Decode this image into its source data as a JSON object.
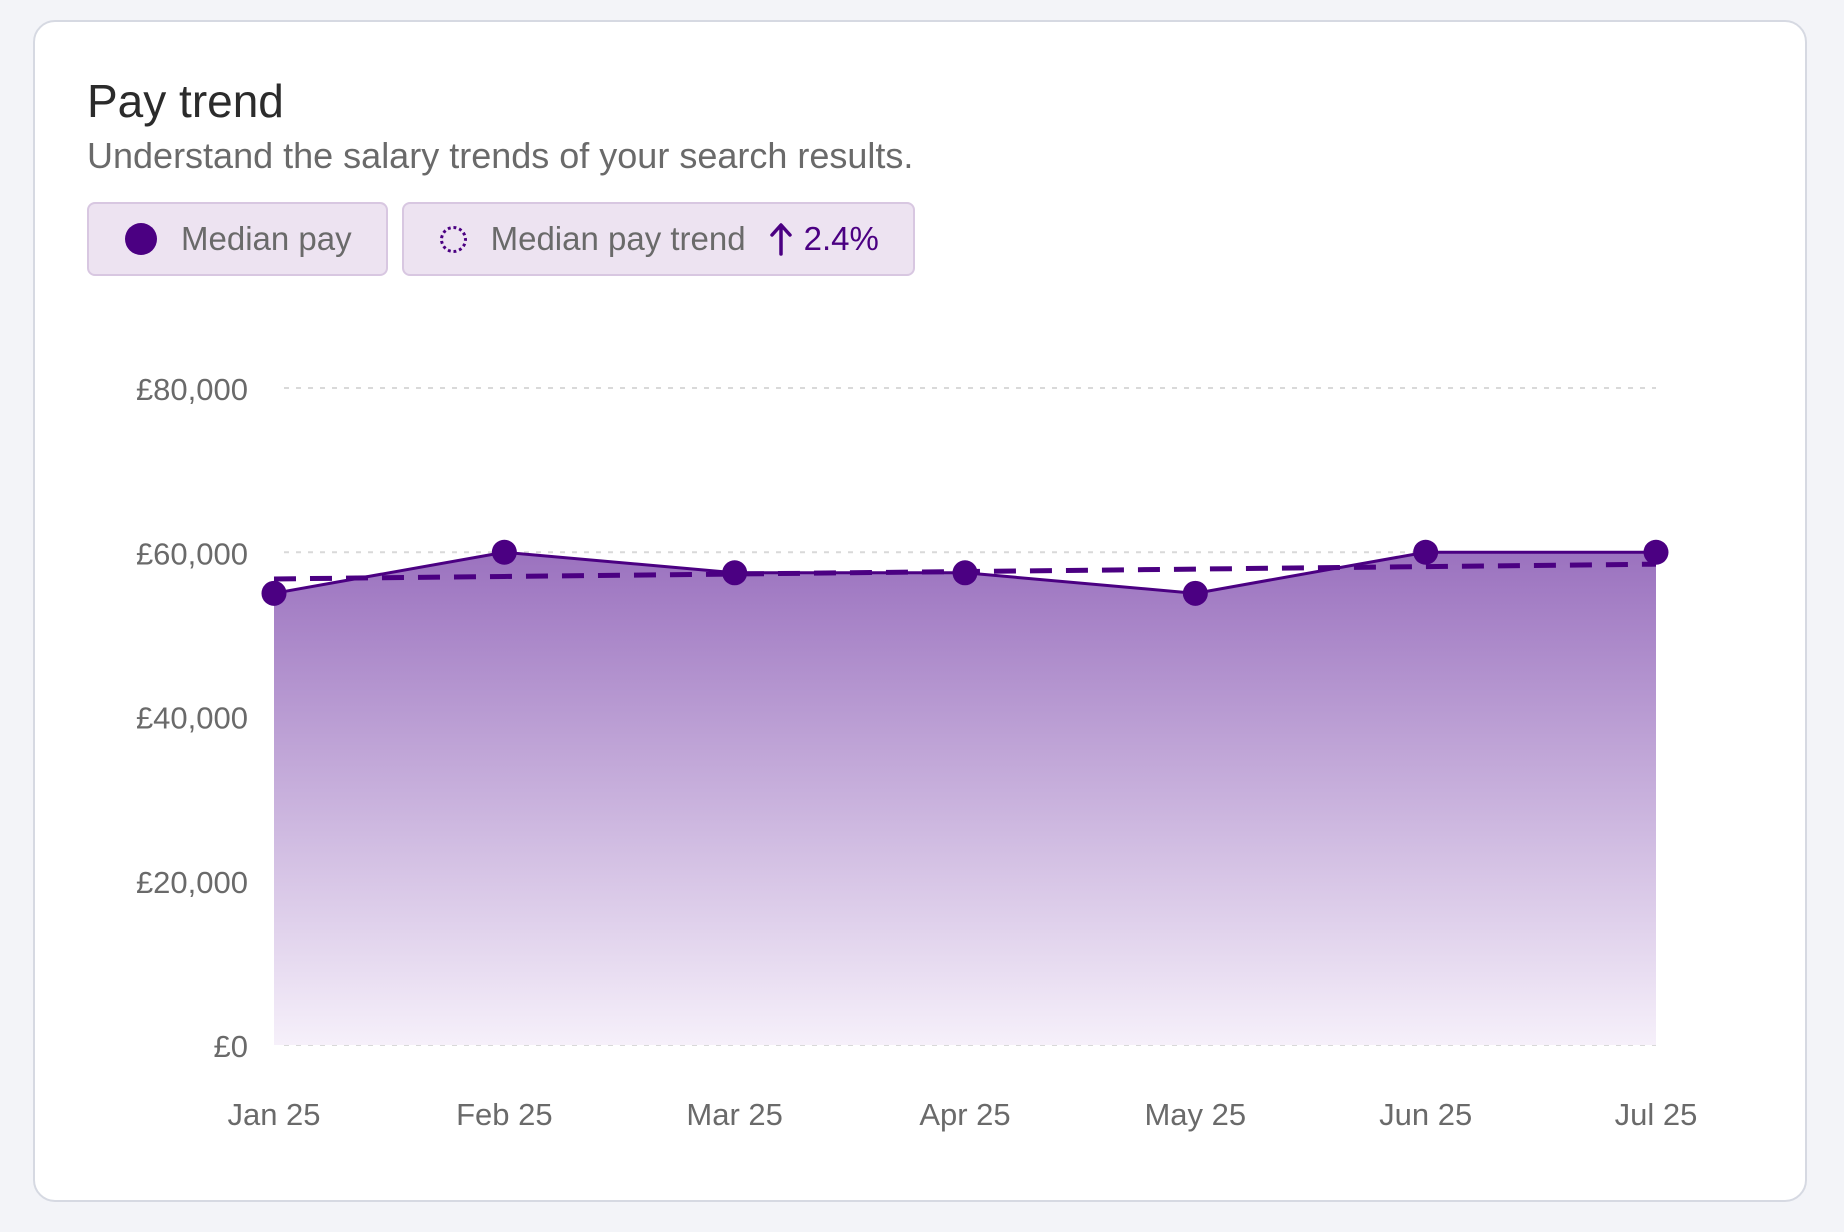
{
  "header": {
    "title": "Pay trend",
    "subtitle": "Understand the salary trends of your search results."
  },
  "legend": {
    "median_pay_label": "Median pay",
    "trend_label": "Median pay trend",
    "trend_change": "2.4%",
    "trend_direction": "up"
  },
  "colors": {
    "accent": "#4b0082",
    "fill_top": "#9b72bf",
    "fill_bottom": "#f6f0fa",
    "grid": "#d9d9d9",
    "axis_text": "#6a6a6a"
  },
  "chart_data": {
    "type": "area",
    "categories": [
      "Jan 25",
      "Feb 25",
      "Mar 25",
      "Apr 25",
      "May 25",
      "Jun 25",
      "Jul 25"
    ],
    "series": [
      {
        "name": "Median pay",
        "values": [
          55000,
          60000,
          57500,
          57500,
          55000,
          60000,
          60000
        ],
        "style": "solid-area-with-markers"
      },
      {
        "name": "Median pay trend",
        "values": [
          56750,
          57050,
          57350,
          57650,
          57950,
          58250,
          58550
        ],
        "style": "dashed"
      }
    ],
    "y_ticks": [
      0,
      20000,
      40000,
      60000,
      80000
    ],
    "y_tick_labels": [
      "£0",
      "£20,000",
      "£40,000",
      "£60,000",
      "£80,000"
    ],
    "ylim": [
      0,
      80000
    ],
    "grid": true,
    "grid_style": "dotted-horizontal"
  }
}
